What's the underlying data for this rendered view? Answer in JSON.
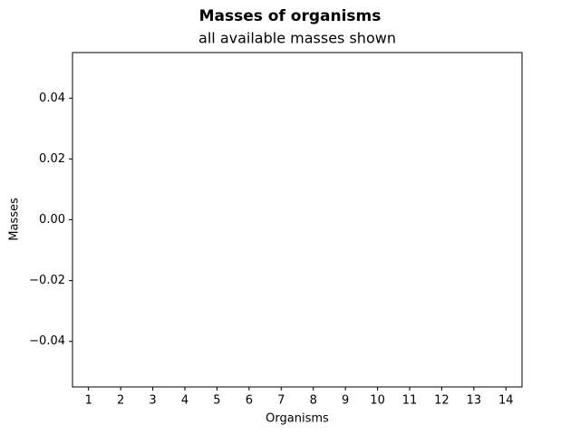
{
  "chart_data": {
    "type": "bar",
    "title": "Masses of organisms",
    "subtitle": "all available masses shown",
    "x_label": "Organisms",
    "y_label": "Masses",
    "categories": [
      "1",
      "2",
      "3",
      "4",
      "5",
      "6",
      "7",
      "8",
      "9",
      "10",
      "11",
      "12",
      "13",
      "14"
    ],
    "values": [
      0,
      0,
      0,
      0,
      0,
      0,
      0,
      0,
      0,
      0,
      0,
      0,
      0,
      0
    ],
    "color": "#1f77b4",
    "ylim": [
      -0.055,
      0.055
    ],
    "yticks": [
      {
        "value": -0.04,
        "label": "−0.04"
      },
      {
        "value": -0.02,
        "label": "−0.02"
      },
      {
        "value": 0,
        "label": "0.00"
      },
      0.02,
      0.04
    ],
    "grid": false
  }
}
